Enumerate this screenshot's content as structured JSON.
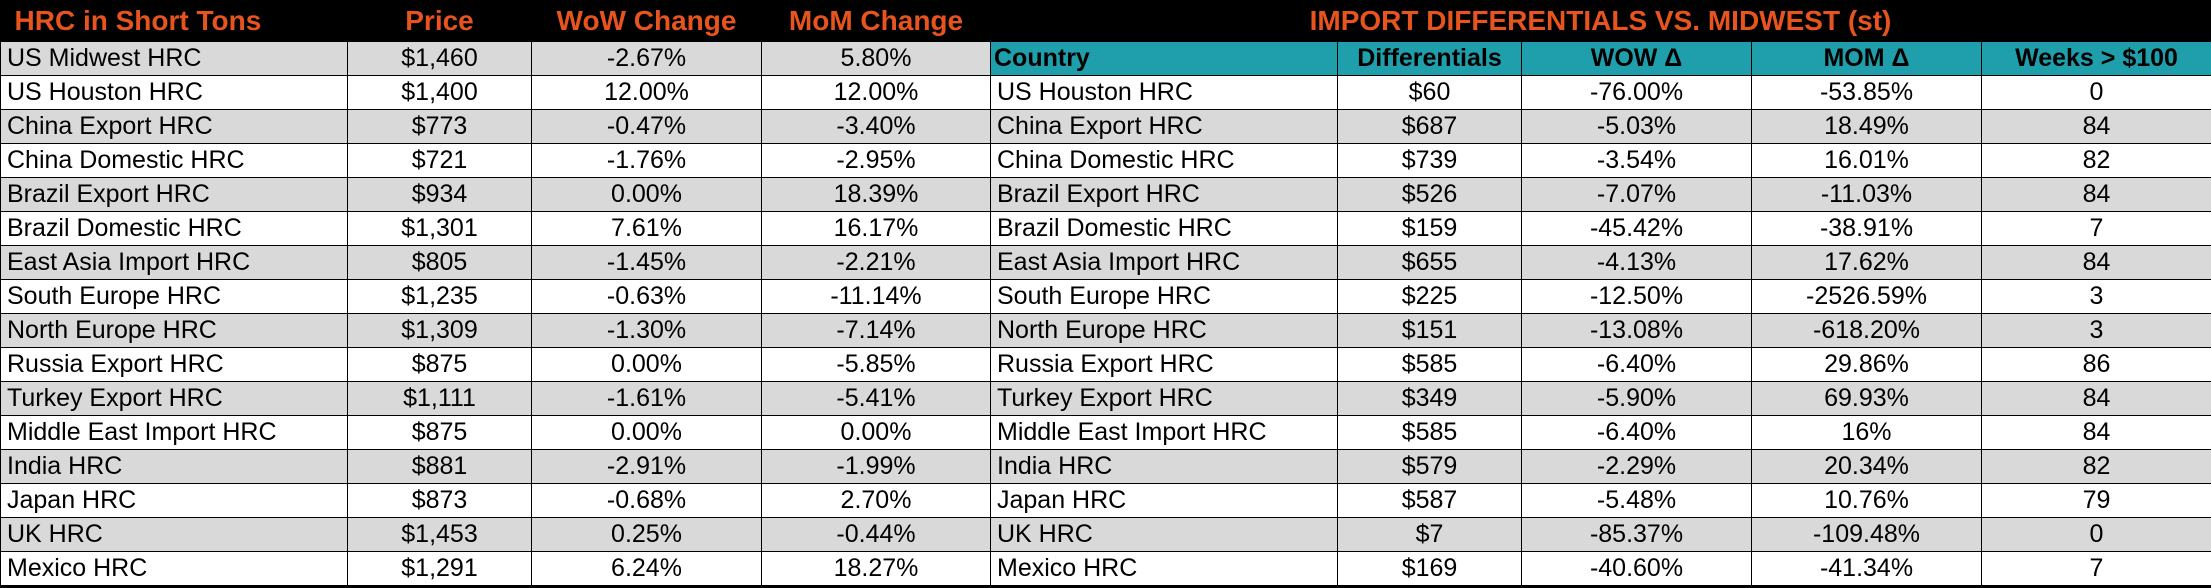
{
  "left": {
    "headers": [
      "HRC in Short Tons",
      "Price",
      "WoW Change",
      "MoM Change"
    ],
    "rows": [
      [
        "US Midwest HRC",
        "$1,460",
        "-2.67%",
        "5.80%"
      ],
      [
        "US Houston HRC",
        "$1,400",
        "12.00%",
        "12.00%"
      ],
      [
        "China Export HRC",
        "$773",
        "-0.47%",
        "-3.40%"
      ],
      [
        "China Domestic HRC",
        "$721",
        "-1.76%",
        "-2.95%"
      ],
      [
        "Brazil Export HRC",
        "$934",
        "0.00%",
        "18.39%"
      ],
      [
        "Brazil Domestic HRC",
        "$1,301",
        "7.61%",
        "16.17%"
      ],
      [
        "East Asia Import HRC",
        "$805",
        "-1.45%",
        "-2.21%"
      ],
      [
        "South Europe HRC",
        "$1,235",
        "-0.63%",
        "-11.14%"
      ],
      [
        "North Europe HRC",
        "$1,309",
        "-1.30%",
        "-7.14%"
      ],
      [
        "Russia Export HRC",
        "$875",
        "0.00%",
        "-5.85%"
      ],
      [
        "Turkey Export HRC",
        "$1,111",
        "-1.61%",
        "-5.41%"
      ],
      [
        "Middle East Import HRC",
        "$875",
        "0.00%",
        "0.00%"
      ],
      [
        "India HRC",
        "$881",
        "-2.91%",
        "-1.99%"
      ],
      [
        "Japan HRC",
        "$873",
        "-0.68%",
        "2.70%"
      ],
      [
        "UK HRC",
        "$1,453",
        "0.25%",
        "-0.44%"
      ],
      [
        "Mexico HRC",
        "$1,291",
        "6.24%",
        "18.27%"
      ]
    ]
  },
  "right": {
    "title": "IMPORT DIFFERENTIALS VS. MIDWEST (st)",
    "headers": [
      "Country",
      "Differentials",
      "WOW Δ",
      "MOM Δ",
      "Weeks > $100"
    ],
    "rows": [
      [
        "US Houston HRC",
        "$60",
        "-76.00%",
        "-53.85%",
        "0"
      ],
      [
        "China Export HRC",
        "$687",
        "-5.03%",
        "18.49%",
        "84"
      ],
      [
        "China Domestic HRC",
        "$739",
        "-3.54%",
        "16.01%",
        "82"
      ],
      [
        "Brazil Export HRC",
        "$526",
        "-7.07%",
        "-11.03%",
        "84"
      ],
      [
        "Brazil Domestic HRC",
        "$159",
        "-45.42%",
        "-38.91%",
        "7"
      ],
      [
        "East Asia Import HRC",
        "$655",
        "-4.13%",
        "17.62%",
        "84"
      ],
      [
        "South Europe HRC",
        "$225",
        "-12.50%",
        "-2526.59%",
        "3"
      ],
      [
        "North Europe HRC",
        "$151",
        "-13.08%",
        "-618.20%",
        "3"
      ],
      [
        "Russia Export HRC",
        "$585",
        "-6.40%",
        "29.86%",
        "86"
      ],
      [
        "Turkey Export HRC",
        "$349",
        "-5.90%",
        "69.93%",
        "84"
      ],
      [
        "Middle East Import HRC",
        "$585",
        "-6.40%",
        "16%",
        "84"
      ],
      [
        "India HRC",
        "$579",
        "-2.29%",
        "20.34%",
        "82"
      ],
      [
        "Japan HRC",
        "$587",
        "-5.48%",
        "10.76%",
        "79"
      ],
      [
        "UK HRC",
        "$7",
        "-85.37%",
        "-109.48%",
        "0"
      ],
      [
        "Mexico HRC",
        "$169",
        "-40.60%",
        "-41.34%",
        "7"
      ]
    ]
  },
  "colors": {
    "title_orange": "#e8541e",
    "header_teal": "#1f9fac",
    "stripe_gray": "#d9d9d9",
    "background_black": "#000000"
  }
}
